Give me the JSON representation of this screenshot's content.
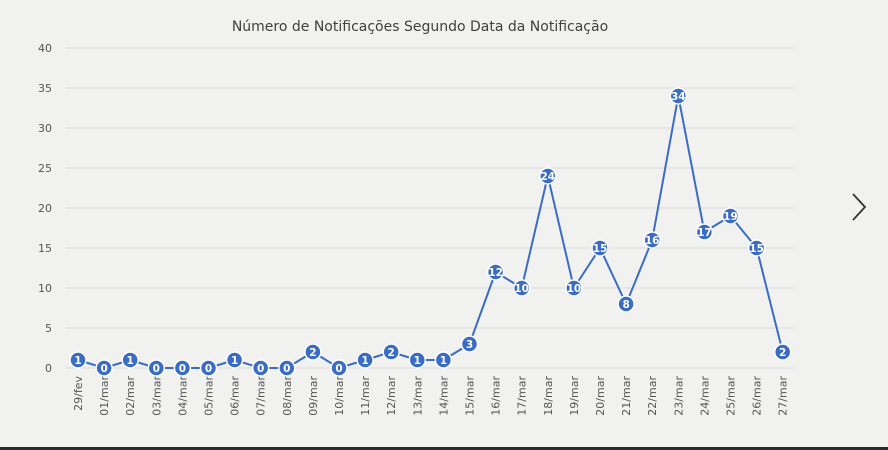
{
  "chart_data": {
    "type": "line",
    "title": "Número de Notificações Segundo Data da Notificação",
    "xlabel": "",
    "ylabel": "",
    "ylim": [
      0,
      40
    ],
    "yticks": [
      "0",
      "5",
      "10",
      "15",
      "20",
      "25",
      "30",
      "35",
      "40"
    ],
    "grid": true,
    "categories": [
      "29/fev",
      "01/mar",
      "02/mar",
      "03/mar",
      "04/mar",
      "05/mar",
      "06/mar",
      "07/mar",
      "08/mar",
      "09/mar",
      "10/mar",
      "11/mar",
      "12/mar",
      "13/mar",
      "14/mar",
      "15/mar",
      "16/mar",
      "17/mar",
      "18/mar",
      "19/mar",
      "20/mar",
      "21/mar",
      "22/mar",
      "23/mar",
      "24/mar",
      "25/mar",
      "26/mar",
      "27/mar"
    ],
    "series": [
      {
        "values": [
          1,
          0,
          1,
          0,
          0,
          0,
          1,
          0,
          0,
          2,
          0,
          1,
          2,
          1,
          1,
          3,
          12,
          10,
          24,
          10,
          15,
          8,
          16,
          34,
          17,
          19,
          15,
          2
        ],
        "color": "#3a6cc4"
      }
    ],
    "data_labels": true
  },
  "navigation": {
    "next_icon": "chevron-right-icon"
  }
}
